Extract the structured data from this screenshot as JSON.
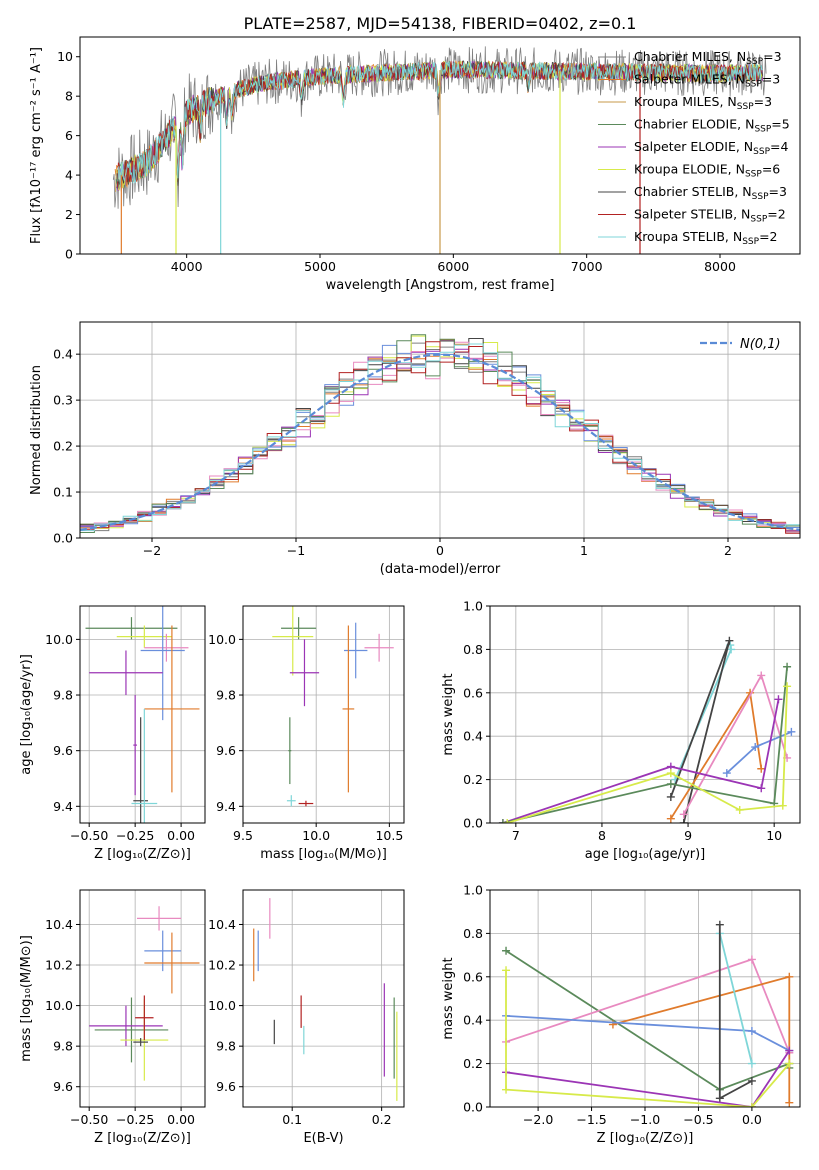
{
  "figure_title": "PLATE=2587, MJD=54138, FIBERID=0402, z=0.1",
  "palette": {
    "chabrier_miles": "#7f7f7f",
    "salpeter_miles": "#e07b2c",
    "kroupa_miles": "#c79a4a",
    "chabrier_elodie": "#5b8a5b",
    "salpeter_elodie": "#9b35b5",
    "kroupa_elodie": "#d7ea4a",
    "chabrier_stelib": "#444444",
    "salpeter_stelib": "#b22222",
    "kroupa_stelib": "#7fd6d8",
    "extra_pink": "#e88ac0",
    "extra_blue": "#6a8fdc",
    "normal_curve": "#5a8bd6"
  },
  "chart_data": [
    {
      "id": "spectrum",
      "type": "line",
      "xlabel": "wavelength [Angstrom, rest frame]",
      "ylabel": "Flux [fλ10⁻¹⁷ erg cm⁻² s⁻¹ A⁻¹]",
      "xlim": [
        3200,
        8600
      ],
      "ylim": [
        0,
        11
      ],
      "xticks": [
        4000,
        5000,
        6000,
        7000,
        8000
      ],
      "yticks": [
        0,
        2,
        4,
        6,
        8,
        10
      ],
      "continuum": {
        "x": [
          3450,
          3700,
          4000,
          4300,
          4600,
          5000,
          5500,
          6000,
          6500,
          7000,
          7500,
          8000,
          8300
        ],
        "y": [
          3.8,
          4.6,
          7.2,
          8.2,
          8.7,
          9.0,
          9.2,
          9.35,
          9.3,
          9.25,
          9.2,
          9.15,
          9.2
        ]
      },
      "legend_position": "right",
      "series": [
        {
          "name": "Chabrier MILES, N$_{SSP}$=3",
          "label": "Chabrier MILES, N",
          "nssp": "=3",
          "color_key": "chabrier_miles"
        },
        {
          "name": "Salpeter MILES, N$_{SSP}$=3",
          "label": "Salpeter MILES, N",
          "nssp": "=3",
          "color_key": "salpeter_miles"
        },
        {
          "name": "Kroupa MILES, N$_{SSP}$=3",
          "label": "Kroupa MILES, N",
          "nssp": "=3",
          "color_key": "kroupa_miles"
        },
        {
          "name": "Chabrier ELODIE, N$_{SSP}$=5",
          "label": "Chabrier ELODIE, N",
          "nssp": "=5",
          "color_key": "chabrier_elodie"
        },
        {
          "name": "Salpeter ELODIE, N$_{SSP}$=4",
          "label": "Salpeter ELODIE, N",
          "nssp": "=4",
          "color_key": "salpeter_elodie"
        },
        {
          "name": "Kroupa ELODIE, N$_{SSP}$=6",
          "label": "Kroupa ELODIE, N",
          "nssp": "=6",
          "color_key": "kroupa_elodie"
        },
        {
          "name": "Chabrier STELIB, N$_{SSP}$=3",
          "label": "Chabrier STELIB, N",
          "nssp": "=3",
          "color_key": "chabrier_stelib"
        },
        {
          "name": "Salpeter STELIB, N$_{SSP}$=2",
          "label": "Salpeter STELIB, N",
          "nssp": "=2",
          "color_key": "salpeter_stelib"
        },
        {
          "name": "Kroupa STELIB, N$_{SSP}$=2",
          "label": "Kroupa STELIB, N",
          "nssp": "=2",
          "color_key": "kroupa_stelib"
        }
      ],
      "subscript": "SSP"
    },
    {
      "id": "residuals",
      "type": "histogram",
      "xlabel": "(data-model)/error",
      "ylabel": "Normed distribution",
      "xlim": [
        -2.5,
        2.5
      ],
      "ylim": [
        0,
        0.47
      ],
      "xticks": [
        -2,
        -1,
        0,
        1,
        2
      ],
      "yticks": [
        0.0,
        0.1,
        0.2,
        0.3,
        0.4
      ],
      "grid": true,
      "bin_width": 0.1,
      "reference_curve": {
        "label": "N(0,1)",
        "mu": 0,
        "sigma": 1,
        "style": "dashed"
      },
      "legend_position": "top-right"
    },
    {
      "id": "age_vs_Z",
      "type": "errorbar",
      "xlabel": "Z [log₁₀(Z/Z⊙)]",
      "ylabel": "age  [log₁₀(age/yr)]",
      "xlim": [
        -0.55,
        0.13
      ],
      "ylim": [
        9.34,
        10.12
      ],
      "xticks": [
        -0.5,
        -0.25,
        0.0
      ],
      "yticks": [
        9.4,
        9.6,
        9.8,
        10.0
      ],
      "grid": true,
      "points": [
        {
          "x": -0.27,
          "y": 10.04,
          "xerr": 0.25,
          "yerr": 0.04,
          "color_key": "chabrier_elodie"
        },
        {
          "x": -0.2,
          "y": 10.01,
          "xerr": 0.15,
          "yerr": 0.04,
          "color_key": "kroupa_elodie"
        },
        {
          "x": -0.08,
          "y": 9.97,
          "xerr": 0.12,
          "yerr": 0.05,
          "color_key": "extra_pink"
        },
        {
          "x": -0.1,
          "y": 9.96,
          "xerr": 0.12,
          "yerr": 0.25,
          "color_key": "extra_blue"
        },
        {
          "x": -0.3,
          "y": 9.88,
          "xerr": 0.2,
          "yerr": 0.08,
          "color_key": "salpeter_elodie"
        },
        {
          "x": -0.05,
          "y": 9.75,
          "xerr": 0.15,
          "yerr": 0.3,
          "color_key": "salpeter_miles"
        },
        {
          "x": -0.25,
          "y": 9.62,
          "xerr": 0.01,
          "yerr": 0.18,
          "color_key": "salpeter_elodie"
        },
        {
          "x": -0.22,
          "y": 9.42,
          "xerr": 0.04,
          "yerr": 0.3,
          "color_key": "chabrier_stelib"
        },
        {
          "x": -0.2,
          "y": 9.41,
          "xerr": 0.07,
          "yerr": 0.34,
          "color_key": "kroupa_stelib"
        }
      ]
    },
    {
      "id": "age_vs_mass",
      "type": "errorbar",
      "xlabel": "mass [log₁₀(M/M⊙)]",
      "ylabel": "",
      "xlim": [
        9.5,
        10.6
      ],
      "ylim": [
        9.34,
        10.12
      ],
      "xticks": [
        9.5,
        10.0,
        10.5
      ],
      "yticks": [
        9.4,
        9.6,
        9.8,
        10.0
      ],
      "grid": true,
      "points": [
        {
          "x": 9.88,
          "y": 10.04,
          "xerr": 0.12,
          "yerr": 0.04,
          "color_key": "chabrier_elodie"
        },
        {
          "x": 9.84,
          "y": 10.01,
          "xerr": 0.14,
          "yerr": 0.14,
          "color_key": "kroupa_elodie"
        },
        {
          "x": 10.43,
          "y": 9.97,
          "xerr": 0.1,
          "yerr": 0.05,
          "color_key": "extra_pink"
        },
        {
          "x": 10.27,
          "y": 9.96,
          "xerr": 0.08,
          "yerr": 0.1,
          "color_key": "extra_blue"
        },
        {
          "x": 9.92,
          "y": 9.88,
          "xerr": 0.1,
          "yerr": 0.12,
          "color_key": "salpeter_elodie"
        },
        {
          "x": 10.22,
          "y": 9.75,
          "xerr": 0.04,
          "yerr": 0.3,
          "color_key": "salpeter_miles"
        },
        {
          "x": 9.82,
          "y": 9.6,
          "xerr": 0.01,
          "yerr": 0.12,
          "color_key": "chabrier_elodie"
        },
        {
          "x": 9.93,
          "y": 9.41,
          "xerr": 0.05,
          "yerr": 0.01,
          "color_key": "salpeter_stelib"
        },
        {
          "x": 9.83,
          "y": 9.42,
          "xerr": 0.03,
          "yerr": 0.02,
          "color_key": "kroupa_stelib"
        }
      ]
    },
    {
      "id": "weight_vs_age",
      "type": "line",
      "xlabel": "age  [log₁₀(age/yr)]",
      "ylabel": "mass weight",
      "xlim": [
        6.7,
        10.3
      ],
      "ylim": [
        0,
        1.0
      ],
      "xticks": [
        7,
        8,
        9,
        10
      ],
      "yticks": [
        0.0,
        0.2,
        0.4,
        0.6,
        0.8,
        1.0
      ],
      "grid": true,
      "series": [
        {
          "color_key": "kroupa_stelib",
          "x": [
            8.85,
            9.5,
            9.49
          ],
          "y": [
            0.2,
            0.8,
            0.82
          ]
        },
        {
          "color_key": "chabrier_stelib",
          "x": [
            8.8,
            9.48,
            8.95
          ],
          "y": [
            0.12,
            0.84,
            0.0
          ]
        },
        {
          "color_key": "salpeter_miles",
          "x": [
            8.8,
            9.72,
            9.85
          ],
          "y": [
            0.02,
            0.6,
            0.25
          ]
        },
        {
          "color_key": "extra_pink",
          "x": [
            8.95,
            9.85,
            10.15
          ],
          "y": [
            0.04,
            0.68,
            0.3
          ]
        },
        {
          "color_key": "extra_blue",
          "x": [
            9.45,
            9.78,
            10.2
          ],
          "y": [
            0.23,
            0.35,
            0.42
          ]
        },
        {
          "color_key": "salpeter_elodie",
          "x": [
            6.85,
            8.8,
            9.85,
            10.05
          ],
          "y": [
            0.0,
            0.26,
            0.16,
            0.57
          ]
        },
        {
          "color_key": "chabrier_elodie",
          "x": [
            6.85,
            8.8,
            10.0,
            10.15
          ],
          "y": [
            0.0,
            0.18,
            0.09,
            0.72
          ]
        },
        {
          "color_key": "kroupa_elodie",
          "x": [
            6.9,
            8.8,
            9.6,
            10.1,
            10.15
          ],
          "y": [
            0.0,
            0.23,
            0.06,
            0.08,
            0.63
          ]
        }
      ]
    },
    {
      "id": "mass_vs_Z",
      "type": "errorbar",
      "xlabel": "Z [log₁₀(Z/Z⊙)]",
      "ylabel": "mass [log₁₀(M/M⊙)]",
      "xlim": [
        -0.55,
        0.13
      ],
      "ylim": [
        9.5,
        10.57
      ],
      "xticks": [
        -0.5,
        -0.25,
        0.0
      ],
      "yticks": [
        9.6,
        9.8,
        10.0,
        10.2,
        10.4
      ],
      "grid": true,
      "points": [
        {
          "x": -0.12,
          "y": 10.43,
          "xerr": 0.12,
          "yerr": 0.06,
          "color_key": "extra_pink"
        },
        {
          "x": -0.1,
          "y": 10.27,
          "xerr": 0.1,
          "yerr": 0.1,
          "color_key": "extra_blue"
        },
        {
          "x": -0.05,
          "y": 10.21,
          "xerr": 0.15,
          "yerr": 0.15,
          "color_key": "salpeter_miles"
        },
        {
          "x": -0.27,
          "y": 9.88,
          "xerr": 0.2,
          "yerr": 0.16,
          "color_key": "chabrier_elodie"
        },
        {
          "x": -0.3,
          "y": 9.9,
          "xerr": 0.2,
          "yerr": 0.1,
          "color_key": "salpeter_elodie"
        },
        {
          "x": -0.2,
          "y": 9.83,
          "xerr": 0.13,
          "yerr": 0.2,
          "color_key": "kroupa_elodie"
        },
        {
          "x": -0.2,
          "y": 9.94,
          "xerr": 0.05,
          "yerr": 0.11,
          "color_key": "salpeter_stelib"
        },
        {
          "x": -0.22,
          "y": 9.82,
          "xerr": 0.04,
          "yerr": 0.02,
          "color_key": "chabrier_stelib"
        }
      ]
    },
    {
      "id": "mass_vs_ebv",
      "type": "errorbar",
      "xlabel": "E(B-V)",
      "ylabel": "",
      "xlim": [
        0.045,
        0.225
      ],
      "ylim": [
        9.5,
        10.57
      ],
      "xticks": [
        0.1,
        0.2
      ],
      "yticks": [
        9.6,
        9.8,
        10.0,
        10.2,
        10.4
      ],
      "grid": true,
      "points": [
        {
          "x": 0.075,
          "y": 10.43,
          "xerr": 0.0,
          "yerr": 0.1,
          "color_key": "extra_pink"
        },
        {
          "x": 0.062,
          "y": 10.27,
          "xerr": 0.0,
          "yerr": 0.1,
          "color_key": "extra_blue"
        },
        {
          "x": 0.057,
          "y": 10.25,
          "xerr": 0.0,
          "yerr": 0.13,
          "color_key": "salpeter_miles"
        },
        {
          "x": 0.11,
          "y": 9.97,
          "xerr": 0.0,
          "yerr": 0.08,
          "color_key": "salpeter_stelib"
        },
        {
          "x": 0.113,
          "y": 9.83,
          "xerr": 0.0,
          "yerr": 0.07,
          "color_key": "kroupa_stelib"
        },
        {
          "x": 0.08,
          "y": 9.87,
          "xerr": 0.0,
          "yerr": 0.06,
          "color_key": "chabrier_stelib"
        },
        {
          "x": 0.203,
          "y": 9.88,
          "xerr": 0.0,
          "yerr": 0.23,
          "color_key": "salpeter_elodie"
        },
        {
          "x": 0.214,
          "y": 9.84,
          "xerr": 0.0,
          "yerr": 0.2,
          "color_key": "chabrier_elodie"
        },
        {
          "x": 0.217,
          "y": 9.75,
          "xerr": 0.0,
          "yerr": 0.22,
          "color_key": "kroupa_elodie"
        }
      ]
    },
    {
      "id": "weight_vs_Z",
      "type": "line",
      "xlabel": "Z [log₁₀(Z/Z⊙)]",
      "ylabel": "mass weight",
      "xlim": [
        -2.45,
        0.45
      ],
      "ylim": [
        0,
        1.0
      ],
      "xticks": [
        -2.0,
        -1.5,
        -1.0,
        -0.5,
        0.0
      ],
      "yticks": [
        0.0,
        0.2,
        0.4,
        0.6,
        0.8,
        1.0
      ],
      "grid": true,
      "series": [
        {
          "color_key": "chabrier_elodie",
          "x": [
            -2.3,
            -0.3,
            0.35,
            0.35
          ],
          "y": [
            0.72,
            0.08,
            0.2,
            0.18
          ]
        },
        {
          "color_key": "extra_pink",
          "x": [
            -2.3,
            0.0,
            0.35
          ],
          "y": [
            0.3,
            0.68,
            0.25
          ]
        },
        {
          "color_key": "salpeter_miles",
          "x": [
            -1.3,
            0.35,
            0.35
          ],
          "y": [
            0.38,
            0.6,
            0.02
          ]
        },
        {
          "color_key": "extra_blue",
          "x": [
            -2.3,
            0.0,
            0.35
          ],
          "y": [
            0.42,
            0.35,
            0.26
          ]
        },
        {
          "color_key": "kroupa_stelib",
          "x": [
            -0.3,
            0.0
          ],
          "y": [
            0.8,
            0.2
          ]
        },
        {
          "color_key": "chabrier_stelib",
          "x": [
            -0.3,
            -0.3,
            0.0
          ],
          "y": [
            0.84,
            0.04,
            0.12
          ]
        },
        {
          "color_key": "salpeter_elodie",
          "x": [
            -2.3,
            0.0,
            0.35
          ],
          "y": [
            0.16,
            0.0,
            0.26
          ]
        },
        {
          "color_key": "kroupa_elodie",
          "x": [
            -2.3,
            -2.3,
            0.0,
            0.35
          ],
          "y": [
            0.63,
            0.08,
            0.0,
            0.2
          ]
        }
      ]
    }
  ]
}
